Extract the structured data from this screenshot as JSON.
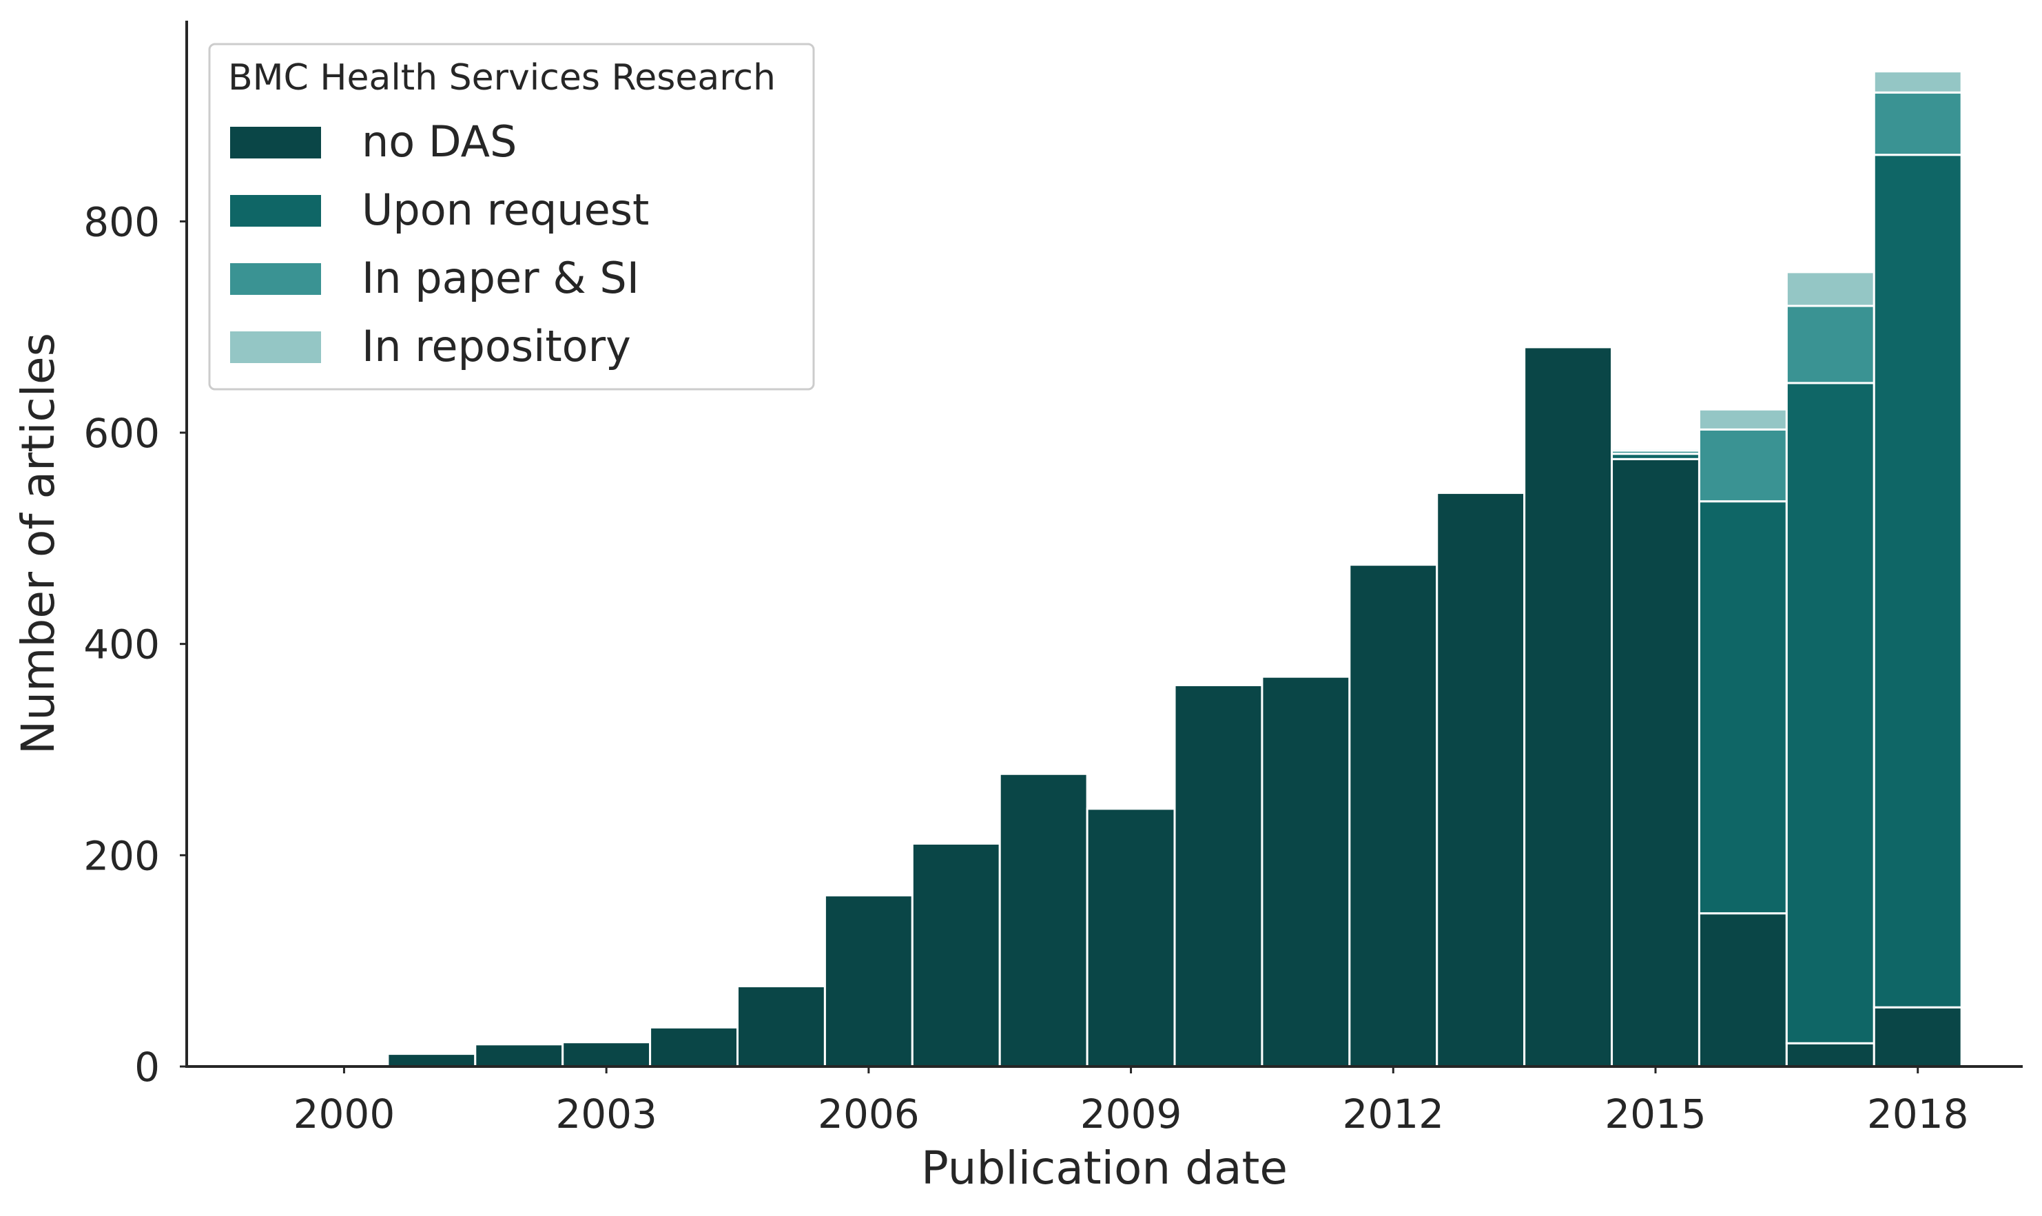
{
  "chart_data": {
    "type": "bar",
    "stacked": true,
    "xlabel": "Publication date",
    "ylabel": "Number of articles",
    "x_ticks": [
      "2000",
      "2003",
      "2006",
      "2009",
      "2012",
      "2015",
      "2018"
    ],
    "y_ticks": [
      "0",
      "200",
      "400",
      "600",
      "800"
    ],
    "ylim": [
      0,
      990
    ],
    "xlim": [
      1998.2,
      2019.2
    ],
    "grid": false,
    "legend": {
      "title": "BMC Health Services Research",
      "placement": "top-left"
    },
    "categories": [
      2000,
      2001,
      2002,
      2003,
      2004,
      2005,
      2006,
      2007,
      2008,
      2009,
      2010,
      2011,
      2012,
      2013,
      2014,
      2015,
      2016,
      2017,
      2018
    ],
    "series": [
      {
        "name": "no DAS",
        "color": "#0a4647",
        "values": [
          0,
          12,
          21,
          23,
          37,
          76,
          162,
          211,
          277,
          244,
          361,
          369,
          475,
          543,
          681,
          575,
          145,
          22,
          56
        ]
      },
      {
        "name": "Upon request",
        "color": "#0f6666",
        "values": [
          0,
          0,
          0,
          0,
          0,
          0,
          0,
          0,
          0,
          0,
          0,
          0,
          0,
          0,
          0,
          5,
          390,
          625,
          807
        ]
      },
      {
        "name": "In paper & SI",
        "color": "#3a9393",
        "values": [
          0,
          0,
          0,
          0,
          0,
          0,
          0,
          0,
          0,
          0,
          0,
          0,
          0,
          0,
          2,
          3,
          68,
          73,
          59
        ]
      },
      {
        "name": "In repository",
        "color": "#94c6c5",
        "values": [
          0,
          0,
          0,
          0,
          0,
          0,
          0,
          0,
          0,
          0,
          0,
          0,
          0,
          0,
          1,
          2,
          19,
          32,
          20
        ]
      }
    ]
  }
}
